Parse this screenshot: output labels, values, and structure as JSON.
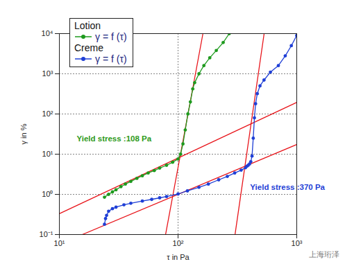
{
  "chart_data": {
    "type": "line",
    "x_label": "τ in Pa",
    "y_label": "γ in %",
    "log": true,
    "grid": true,
    "legend": "top-left",
    "marker": "circle",
    "line_style": "solid",
    "xlim": [
      10,
      1000
    ],
    "ylim": [
      0.1,
      10000
    ],
    "xticks": [
      {
        "value": 10,
        "label": "10¹"
      },
      {
        "value": 100,
        "label": "10²"
      },
      {
        "value": 1000,
        "label": "10³"
      }
    ],
    "yticks": [
      {
        "value": 0.1,
        "label": "10⁻¹"
      },
      {
        "value": 1,
        "label": "10⁰"
      },
      {
        "value": 10,
        "label": "10¹"
      },
      {
        "value": 100,
        "label": "10²"
      },
      {
        "value": 1000,
        "label": "10³"
      },
      {
        "value": 10000,
        "label": "10⁴"
      }
    ],
    "series": [
      {
        "name": "Lotion",
        "label": "γ = f (τ)",
        "color": "#1e9a1e",
        "x": [
          24,
          26,
          28,
          30,
          33,
          36,
          40,
          45,
          50,
          56,
          63,
          70,
          80,
          90,
          100,
          105,
          110,
          115,
          121,
          127,
          133,
          138,
          150,
          165,
          185,
          210,
          240,
          270
        ],
        "values": [
          0.85,
          1.0,
          1.15,
          1.3,
          1.55,
          1.8,
          2.1,
          2.5,
          2.9,
          3.4,
          3.9,
          4.5,
          5.3,
          6.3,
          7.6,
          10,
          18,
          40,
          100,
          200,
          420,
          600,
          1000,
          1600,
          2500,
          3800,
          6000,
          10000
        ]
      },
      {
        "name": "Creme",
        "label": "γ = f (τ)",
        "color": "#1f3fd6",
        "x": [
          24,
          24.5,
          25,
          26,
          28,
          30,
          35,
          40,
          50,
          60,
          70,
          80,
          100,
          120,
          150,
          180,
          220,
          260,
          300,
          340,
          370,
          380,
          390,
          400,
          410,
          420,
          430,
          440,
          450,
          465,
          490,
          530,
          600,
          700,
          800,
          900,
          1000
        ],
        "values": [
          0.18,
          0.25,
          0.3,
          0.38,
          0.44,
          0.48,
          0.55,
          0.6,
          0.68,
          0.75,
          0.82,
          0.88,
          1.02,
          1.22,
          1.5,
          1.8,
          2.3,
          2.8,
          3.4,
          4.0,
          4.6,
          5.0,
          5.3,
          5.7,
          6.5,
          9,
          25,
          80,
          180,
          320,
          500,
          700,
          1100,
          1600,
          2800,
          5000,
          9000
        ]
      }
    ],
    "reference_lines": [
      {
        "color": "#e8141a",
        "x": [
          10,
          1000
        ],
        "values": [
          0.33,
          195
        ]
      },
      {
        "color": "#e8141a",
        "x": [
          78.5,
          162
        ],
        "values": [
          0.1,
          10000
        ]
      },
      {
        "color": "#e8141a",
        "x": [
          15.6,
          1000
        ],
        "values": [
          0.1,
          17.4
        ]
      },
      {
        "color": "#e8141a",
        "x": [
          302,
          531
        ],
        "values": [
          0.1,
          10000
        ]
      }
    ],
    "annotations": [
      {
        "text": "Yield stress :108 Pa",
        "color": "#2e9a1a",
        "x": 14,
        "y": 24
      },
      {
        "text": "Yield stress :370 Pa",
        "color": "#1f3fd6",
        "x": 405,
        "y": 1.5
      }
    ],
    "source": "上海珩泽"
  }
}
